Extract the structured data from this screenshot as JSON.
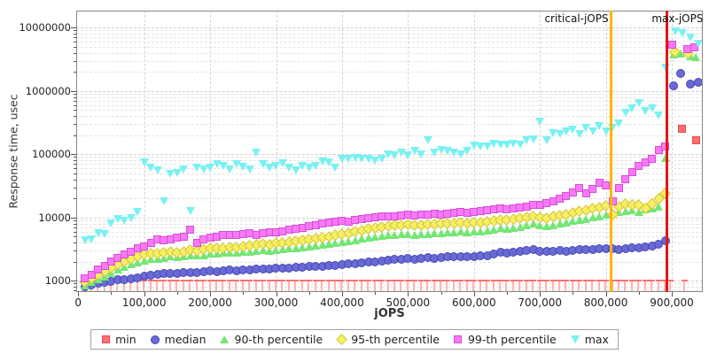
{
  "figure": {
    "background": "#ffffff",
    "frame_color": "#8a8a8a"
  },
  "chart_data": {
    "type": "scatter",
    "title": "",
    "xlabel": "jOPS",
    "ylabel": "Response time, usec",
    "x_scale": "linear",
    "y_scale": "log",
    "xlim": [
      0,
      947000
    ],
    "ylim": [
      660,
      18500000
    ],
    "grid": "dashed",
    "x_ticks": {
      "values": [
        0,
        100000,
        200000,
        300000,
        400000,
        500000,
        600000,
        700000,
        800000,
        900000
      ],
      "labels": [
        "0",
        "100,000",
        "200,000",
        "300,000",
        "400,000",
        "500,000",
        "600,000",
        "700,000",
        "800,000",
        "900,000"
      ],
      "minor_step": 50000
    },
    "y_ticks": {
      "values": [
        1000,
        10000,
        100000,
        1000000,
        10000000
      ],
      "labels": [
        "1000",
        "10000",
        "100000",
        "1000000",
        "10000000"
      ]
    },
    "annotations": [
      {
        "label": "critical-jOPS",
        "x": 808000,
        "color": "#ffb400"
      },
      {
        "label": "max-jOPS",
        "x": 893000,
        "color": "#e81414"
      }
    ],
    "x": [
      10000,
      20000,
      30000,
      40000,
      50000,
      60000,
      70000,
      80000,
      90000,
      100000,
      110000,
      120000,
      130000,
      140000,
      150000,
      160000,
      170000,
      180000,
      190000,
      200000,
      210000,
      220000,
      230000,
      240000,
      250000,
      260000,
      270000,
      280000,
      290000,
      300000,
      310000,
      320000,
      330000,
      340000,
      350000,
      360000,
      370000,
      380000,
      390000,
      400000,
      410000,
      420000,
      430000,
      440000,
      450000,
      460000,
      470000,
      480000,
      490000,
      500000,
      510000,
      520000,
      530000,
      540000,
      550000,
      560000,
      570000,
      580000,
      590000,
      600000,
      610000,
      620000,
      630000,
      640000,
      650000,
      660000,
      670000,
      680000,
      690000,
      700000,
      710000,
      720000,
      730000,
      740000,
      750000,
      760000,
      770000,
      780000,
      790000,
      800000,
      810000,
      820000,
      830000,
      840000,
      850000,
      860000,
      870000,
      880000,
      890000
    ],
    "series": [
      {
        "name": "min",
        "marker": "tee",
        "legend_marker": "square",
        "fill": "#ff6f6f",
        "edge": "#e05050",
        "light": "#ffb3b3",
        "values": [
          900,
          900,
          900,
          900,
          900,
          900,
          900,
          900,
          900,
          900,
          900,
          900,
          900,
          900,
          900,
          900,
          900,
          900,
          900,
          900,
          900,
          900,
          900,
          900,
          900,
          900,
          900,
          900,
          900,
          900,
          900,
          900,
          900,
          900,
          900,
          900,
          900,
          900,
          900,
          900,
          900,
          900,
          900,
          900,
          900,
          900,
          900,
          900,
          900,
          900,
          900,
          900,
          900,
          900,
          900,
          900,
          900,
          900,
          900,
          900,
          900,
          900,
          900,
          900,
          900,
          900,
          900,
          900,
          900,
          900,
          900,
          900,
          900,
          900,
          900,
          900,
          900,
          900,
          900,
          900,
          900,
          900,
          900,
          900,
          900,
          900,
          900,
          900,
          900
        ],
        "extra_points": [
          [
            898000,
            900
          ],
          [
            916000,
            250000
          ],
          [
            920000,
            900
          ],
          [
            937000,
            165000
          ]
        ]
      },
      {
        "name": "median",
        "marker": "circle",
        "legend_marker": "circle",
        "fill": "#6a6ad6",
        "edge": "#4747b4",
        "values": [
          800,
          850,
          900,
          950,
          980,
          1020,
          1050,
          1080,
          1120,
          1180,
          1210,
          1240,
          1280,
          1310,
          1290,
          1330,
          1360,
          1340,
          1380,
          1430,
          1400,
          1440,
          1470,
          1450,
          1480,
          1500,
          1520,
          1540,
          1530,
          1570,
          1590,
          1600,
          1630,
          1650,
          1680,
          1700,
          1690,
          1720,
          1750,
          1800,
          1830,
          1870,
          1900,
          1950,
          2000,
          2060,
          2100,
          2170,
          2200,
          2240,
          2200,
          2260,
          2300,
          2280,
          2330,
          2360,
          2380,
          2400,
          2370,
          2420,
          2460,
          2500,
          2600,
          2800,
          2750,
          2850,
          2900,
          3000,
          3090,
          2950,
          2900,
          2950,
          3000,
          2950,
          3000,
          3090,
          3050,
          3090,
          3160,
          3200,
          3160,
          3090,
          3160,
          3260,
          3300,
          3380,
          3470,
          3800,
          4260
        ],
        "extra_points": [
          [
            903000,
            1200000
          ],
          [
            913000,
            1900000
          ],
          [
            928000,
            1270000
          ],
          [
            940000,
            1350000
          ]
        ]
      },
      {
        "name": "90-th percentile",
        "marker": "triangle-up",
        "legend_marker": "triangle-up",
        "fill": "#74e674",
        "edge": "#4cc44c",
        "values": [
          850,
          950,
          1050,
          1150,
          1300,
          1500,
          1650,
          1800,
          1950,
          2100,
          2240,
          2200,
          2300,
          2400,
          2350,
          2450,
          2500,
          2480,
          2550,
          2700,
          2650,
          2750,
          2800,
          2800,
          2850,
          2900,
          2950,
          3000,
          2950,
          3000,
          3100,
          3200,
          3300,
          3400,
          3500,
          3600,
          3700,
          3800,
          3900,
          4100,
          4200,
          4400,
          4600,
          4800,
          5000,
          5100,
          5200,
          5340,
          5400,
          5500,
          5340,
          5400,
          5500,
          5600,
          5700,
          5800,
          5870,
          5900,
          5800,
          5900,
          6000,
          6100,
          6300,
          6900,
          6700,
          6900,
          7100,
          7500,
          7900,
          7500,
          7200,
          7500,
          7900,
          8300,
          8700,
          9100,
          9500,
          10000,
          10500,
          11000,
          11500,
          12000,
          12600,
          13000,
          12000,
          13500,
          14000,
          15000,
          88000
        ],
        "extra_points": [
          [
            903000,
            3700000
          ],
          [
            913000,
            3900000
          ],
          [
            928000,
            3500000
          ],
          [
            936000,
            3400000
          ]
        ]
      },
      {
        "name": "95-th percentile",
        "marker": "diamond",
        "legend_marker": "diamond",
        "fill": "#f6ee64",
        "edge": "#d2c83a",
        "values": [
          950,
          1100,
          1250,
          1400,
          1600,
          1800,
          2000,
          2200,
          2400,
          2630,
          2700,
          2650,
          2750,
          2850,
          2800,
          2900,
          3000,
          2950,
          3100,
          3290,
          3200,
          3300,
          3400,
          3400,
          3500,
          3600,
          3700,
          3800,
          3750,
          3900,
          4000,
          4100,
          4250,
          4400,
          4540,
          4700,
          4850,
          5000,
          5200,
          5400,
          5600,
          5900,
          6200,
          6500,
          6800,
          7000,
          7200,
          7400,
          7500,
          7700,
          7500,
          7600,
          7700,
          7800,
          7900,
          8000,
          8100,
          8200,
          8000,
          8200,
          8400,
          8600,
          8900,
          9250,
          9100,
          9400,
          9700,
          10000,
          10200,
          10000,
          9700,
          10200,
          10700,
          11200,
          11800,
          12400,
          13000,
          13700,
          14400,
          15100,
          11000,
          15000,
          16500,
          15500,
          16000,
          14000,
          16500,
          20000,
          24000
        ],
        "extra_points": [
          [
            905000,
            4200000
          ],
          [
            925000,
            3900000
          ]
        ]
      },
      {
        "name": "99-th percentile",
        "marker": "square",
        "legend_marker": "square",
        "fill": "#f878f8",
        "edge": "#d44fd4",
        "values": [
          1070,
          1250,
          1500,
          1730,
          2000,
          2300,
          2600,
          2900,
          3200,
          3500,
          3900,
          4540,
          4300,
          4500,
          4800,
          5000,
          6300,
          3900,
          4540,
          4800,
          5000,
          5200,
          5340,
          5200,
          5400,
          5600,
          5340,
          5600,
          5870,
          5870,
          6000,
          6300,
          6500,
          6800,
          7200,
          7500,
          7900,
          8200,
          8500,
          8800,
          8500,
          9000,
          9300,
          9700,
          10000,
          10200,
          10500,
          10200,
          10700,
          11200,
          10700,
          11000,
          11200,
          11500,
          11200,
          11500,
          11900,
          12200,
          11900,
          12200,
          12600,
          13000,
          13500,
          14000,
          13500,
          14000,
          14500,
          15000,
          15500,
          16000,
          17000,
          18000,
          20000,
          22000,
          25000,
          29000,
          24000,
          28000,
          35000,
          32000,
          18000,
          29000,
          40000,
          52000,
          65000,
          75000,
          85000,
          115000,
          130000
        ],
        "extra_points": [
          [
            901000,
            5400000
          ],
          [
            923000,
            4600000
          ],
          [
            934000,
            4800000
          ]
        ]
      },
      {
        "name": "max",
        "marker": "triangle-down",
        "legend_marker": "triangle-down",
        "fill": "#79f1f1",
        "edge": "#4cd0d0",
        "values": [
          4400,
          4500,
          5700,
          5400,
          8100,
          9300,
          8800,
          9800,
          12000,
          75000,
          60000,
          55000,
          18000,
          49000,
          50000,
          58000,
          12700,
          60000,
          57000,
          60000,
          70000,
          65000,
          58000,
          70000,
          62000,
          57000,
          105000,
          70000,
          60000,
          65000,
          72000,
          60000,
          55000,
          65000,
          60000,
          65000,
          77000,
          75000,
          60000,
          83000,
          83000,
          88000,
          83000,
          85000,
          80000,
          83000,
          100000,
          95000,
          105000,
          95000,
          112000,
          100000,
          165000,
          105000,
          115000,
          112000,
          105000,
          100000,
          112000,
          135000,
          130000,
          130000,
          145000,
          140000,
          140000,
          145000,
          140000,
          165000,
          170000,
          320000,
          165000,
          215000,
          210000,
          230000,
          240000,
          210000,
          260000,
          230000,
          280000,
          230000,
          260000,
          300000,
          450000,
          530000,
          630000,
          480000,
          530000,
          410000,
          2300000
        ],
        "extra_points": [
          [
            905000,
            8800000
          ],
          [
            916000,
            8200000
          ],
          [
            928000,
            7000000
          ],
          [
            940000,
            5500000
          ]
        ]
      }
    ],
    "legend": {
      "position": "bottom",
      "labels": [
        "min",
        "median",
        "90-th percentile",
        "95-th percentile",
        "99-th percentile",
        "max"
      ]
    }
  }
}
